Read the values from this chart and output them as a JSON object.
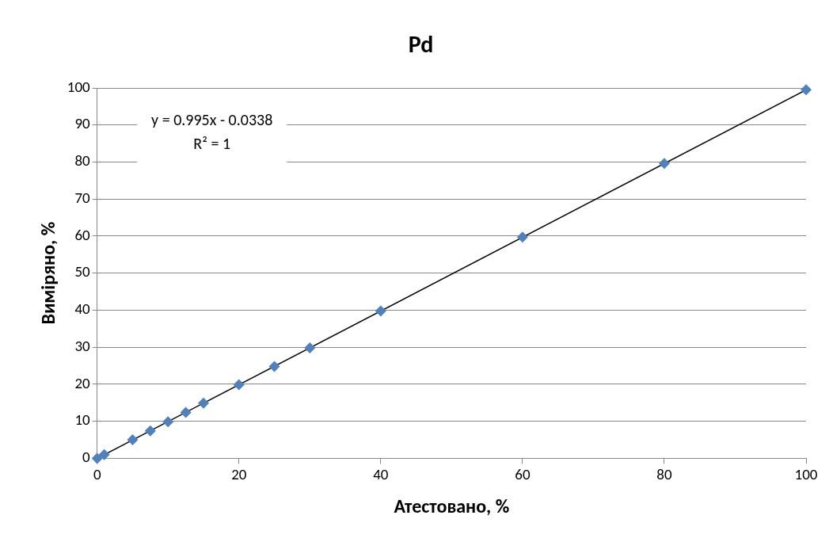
{
  "chart_data": {
    "type": "scatter",
    "title": "Pd",
    "xlabel": "Атестовано, %",
    "ylabel": "Виміряно, %",
    "x": [
      0,
      1,
      5,
      7.5,
      10,
      12.5,
      15,
      20,
      25,
      30,
      40,
      60,
      80,
      100
    ],
    "series": [
      {
        "color": "#4f81bd",
        "marker": "diamond",
        "values": [
          0,
          1,
          5,
          7.4,
          9.9,
          12.4,
          14.9,
          19.9,
          24.8,
          29.8,
          39.8,
          59.7,
          79.6,
          99.5
        ]
      },
      {
        "type": "line",
        "color": "#000000",
        "marker": "none",
        "line_style": "solid",
        "x": [
          0.03,
          100
        ],
        "values": [
          0,
          99.5
        ]
      }
    ],
    "xlim": [
      0,
      100
    ],
    "xticks": [
      0,
      20,
      40,
      60,
      80,
      100
    ],
    "ylim": [
      0,
      100
    ],
    "yticks": [
      0,
      10,
      20,
      30,
      40,
      50,
      60,
      70,
      80,
      90,
      100
    ],
    "grid": "y",
    "legend": false,
    "annotations": [
      "y = 0.995x - 0.0338",
      "R² = 1"
    ]
  }
}
